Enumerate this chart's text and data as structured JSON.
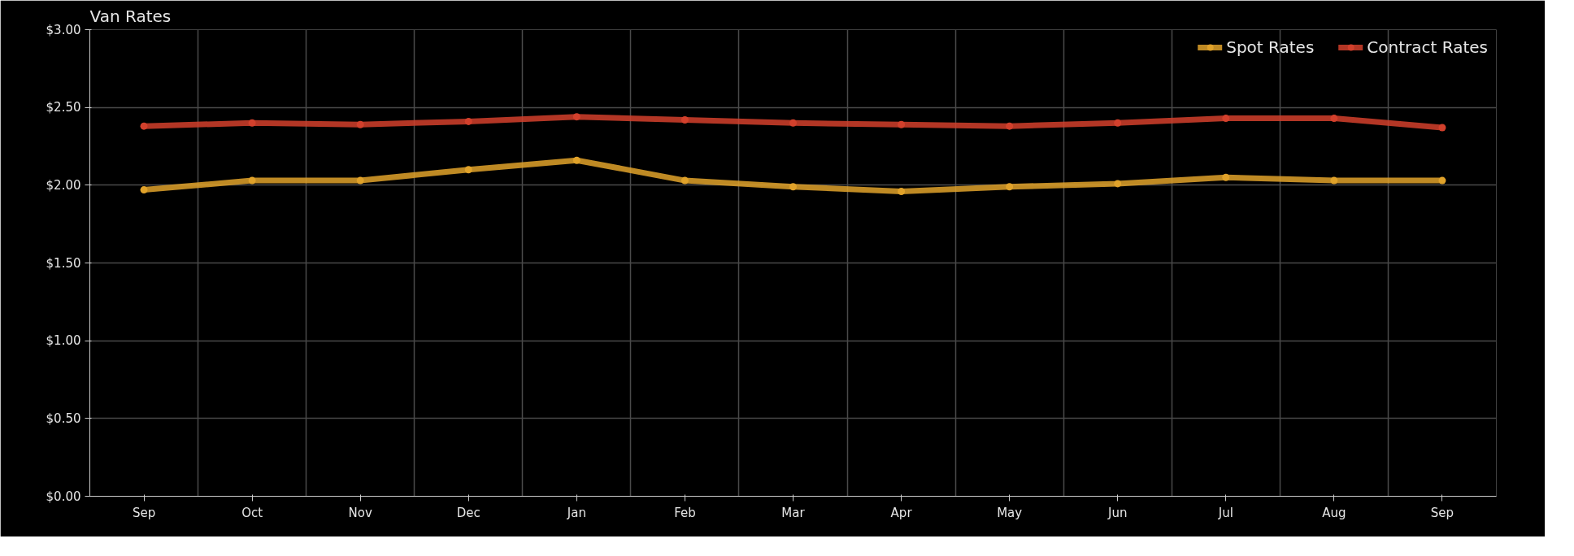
{
  "chart_data": {
    "type": "line",
    "title": "Van Rates",
    "categories": [
      "Sep",
      "Oct",
      "Nov",
      "Dec",
      "Jan",
      "Feb",
      "Mar",
      "Apr",
      "May",
      "Jun",
      "Jul",
      "Aug",
      "Sep"
    ],
    "series": [
      {
        "name": "Spot Rates",
        "color": "#e0a22a",
        "values": [
          1.97,
          2.03,
          2.03,
          2.1,
          2.16,
          2.03,
          1.99,
          1.96,
          1.99,
          2.01,
          2.05,
          2.03,
          2.03
        ]
      },
      {
        "name": "Contract Rates",
        "color": "#d2402c",
        "values": [
          2.38,
          2.4,
          2.39,
          2.41,
          2.44,
          2.42,
          2.4,
          2.39,
          2.38,
          2.4,
          2.43,
          2.43,
          2.37
        ]
      }
    ],
    "ylim": [
      0,
      3
    ],
    "yticks": [
      {
        "value": 0,
        "label": "$0.00"
      },
      {
        "value": 0.5,
        "label": "$0.50"
      },
      {
        "value": 1,
        "label": "$1.00"
      },
      {
        "value": 1.5,
        "label": "$1.50"
      },
      {
        "value": 2,
        "label": "$2.00"
      },
      {
        "value": 2.5,
        "label": "$2.50"
      },
      {
        "value": 3,
        "label": "$3.00"
      }
    ],
    "grid": true,
    "legend": "top right",
    "marker": "circle",
    "line_style": "solid"
  }
}
